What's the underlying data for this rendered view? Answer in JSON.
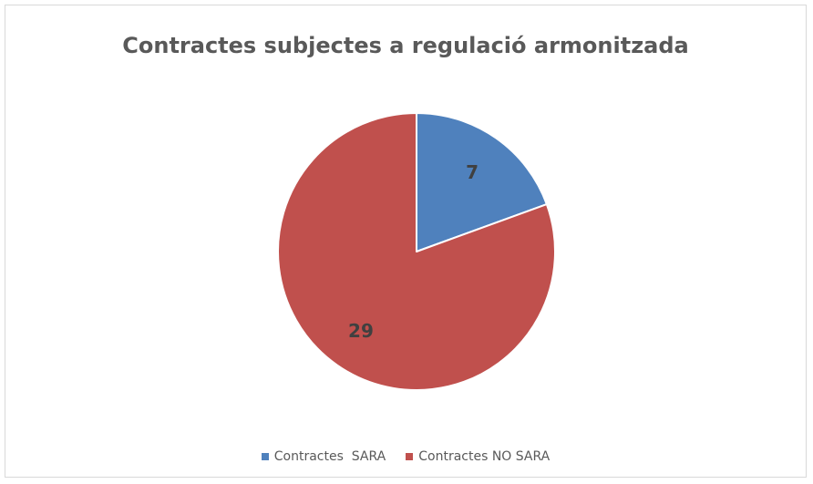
{
  "chart_data": {
    "type": "pie",
    "title": "Contractes subjectes a regulació armonitzada",
    "categories": [
      "Contractes  SARA",
      "Contractes NO SARA"
    ],
    "values": [
      7,
      29
    ],
    "data_labels": [
      "7",
      "29"
    ],
    "colors": [
      "#4f81bd",
      "#c0504d"
    ],
    "start_angle_deg": 0,
    "direction": "clockwise",
    "legend_position": "bottom"
  }
}
